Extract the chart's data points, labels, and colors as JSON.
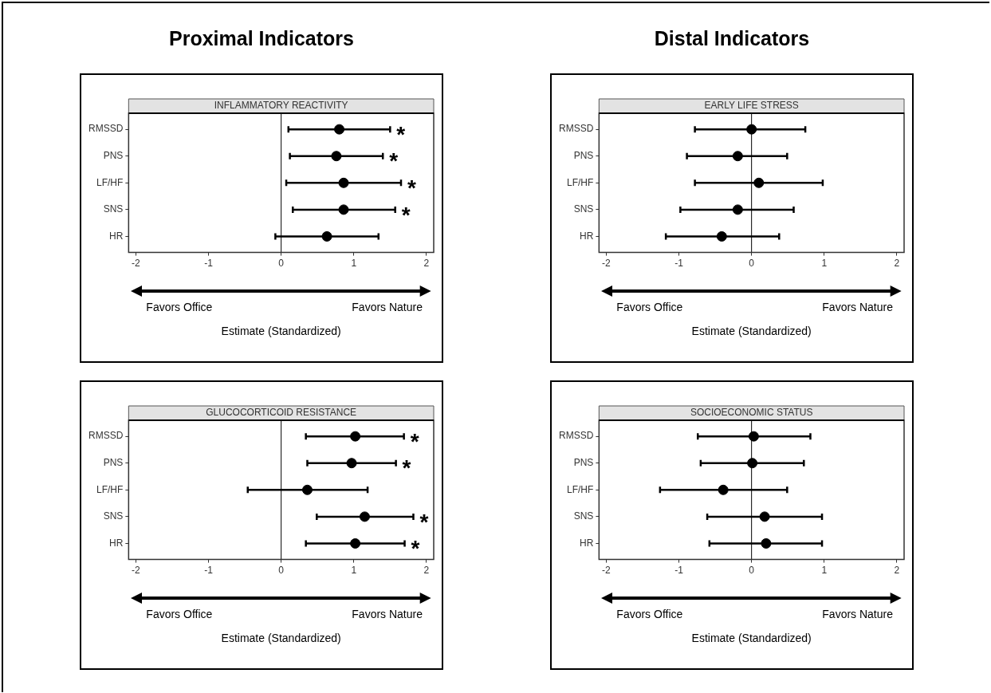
{
  "chart_data": [
    {
      "type": "scatter",
      "orientation": "horizontal",
      "title": "INFLAMMATORY REACTIVITY",
      "xlabel": "Estimate (Standardized)",
      "categories": [
        "RMSSD",
        "PNS",
        "LF/HF",
        "SNS",
        "HR"
      ],
      "color": "#000000",
      "marker": "circle",
      "grid": false,
      "xlim": [
        -2.1,
        2.1
      ],
      "xticks": [
        -2,
        -1,
        0,
        1,
        2
      ],
      "values": [
        0.8,
        0.76,
        0.86,
        0.86,
        0.63
      ],
      "errors": [
        [
          0.1,
          1.5
        ],
        [
          0.12,
          1.4
        ],
        [
          0.07,
          1.65
        ],
        [
          0.16,
          1.57
        ],
        [
          -0.08,
          1.34
        ]
      ],
      "value_labels": [
        "*",
        "*",
        "*",
        "*",
        null
      ],
      "ref_lines": [
        {
          "axis": "x",
          "value": 0
        }
      ],
      "annotations": [
        "Proximal Indicators",
        "Favors Office",
        "Favors Nature"
      ]
    },
    {
      "type": "scatter",
      "orientation": "horizontal",
      "title": "EARLY LIFE STRESS",
      "xlabel": "Estimate (Standardized)",
      "categories": [
        "RMSSD",
        "PNS",
        "LF/HF",
        "SNS",
        "HR"
      ],
      "color": "#000000",
      "marker": "circle",
      "grid": false,
      "xlim": [
        -2.1,
        2.1
      ],
      "xticks": [
        -2,
        -1,
        0,
        1,
        2
      ],
      "values": [
        0.0,
        -0.19,
        0.1,
        -0.19,
        -0.41
      ],
      "errors": [
        [
          -0.78,
          0.74
        ],
        [
          -0.89,
          0.49
        ],
        [
          -0.78,
          0.98
        ],
        [
          -0.98,
          0.58
        ],
        [
          -1.18,
          0.38
        ]
      ],
      "ref_lines": [
        {
          "axis": "x",
          "value": 0
        }
      ],
      "annotations": [
        "Distal Indicators",
        "Favors Office",
        "Favors Nature"
      ]
    },
    {
      "type": "scatter",
      "orientation": "horizontal",
      "title": "GLUCOCORTICOID RESISTANCE",
      "xlabel": "Estimate (Standardized)",
      "categories": [
        "RMSSD",
        "PNS",
        "LF/HF",
        "SNS",
        "HR"
      ],
      "color": "#000000",
      "marker": "circle",
      "grid": false,
      "xlim": [
        -2.1,
        2.1
      ],
      "xticks": [
        -2,
        -1,
        0,
        1,
        2
      ],
      "values": [
        1.02,
        0.97,
        0.36,
        1.15,
        1.02
      ],
      "errors": [
        [
          0.34,
          1.69
        ],
        [
          0.36,
          1.58
        ],
        [
          -0.46,
          1.19
        ],
        [
          0.49,
          1.82
        ],
        [
          0.34,
          1.7
        ]
      ],
      "value_labels": [
        "*",
        "*",
        null,
        "*",
        "*"
      ],
      "ref_lines": [
        {
          "axis": "x",
          "value": 0
        }
      ],
      "annotations": [
        "Favors Office",
        "Favors Nature"
      ]
    },
    {
      "type": "scatter",
      "orientation": "horizontal",
      "title": "SOCIOECONOMIC STATUS",
      "xlabel": "Estimate (Standardized)",
      "categories": [
        "RMSSD",
        "PNS",
        "LF/HF",
        "SNS",
        "HR"
      ],
      "color": "#000000",
      "marker": "circle",
      "grid": false,
      "xlim": [
        -2.1,
        2.1
      ],
      "xticks": [
        -2,
        -1,
        0,
        1,
        2
      ],
      "values": [
        0.03,
        0.01,
        -0.39,
        0.18,
        0.2
      ],
      "errors": [
        [
          -0.74,
          0.81
        ],
        [
          -0.7,
          0.72
        ],
        [
          -1.26,
          0.49
        ],
        [
          -0.61,
          0.97
        ],
        [
          -0.58,
          0.97
        ]
      ],
      "ref_lines": [
        {
          "axis": "x",
          "value": 0
        }
      ],
      "annotations": [
        "Favors Office",
        "Favors Nature"
      ]
    }
  ]
}
